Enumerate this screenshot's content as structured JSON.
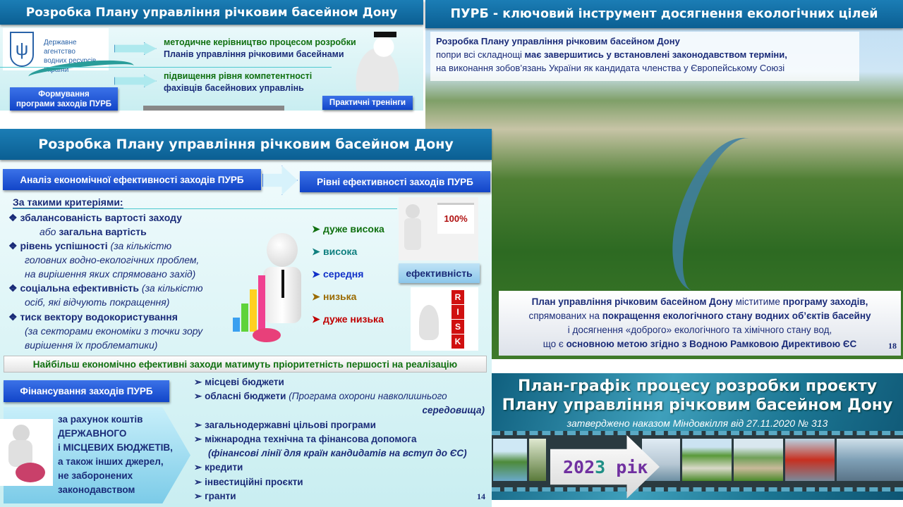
{
  "slide1": {
    "title": "Розробка Плану управління річковим басейном Дону",
    "agency": [
      "Державне агентство",
      "водних ресурсів України"
    ],
    "item1": [
      "методичне керівництво процесом розробки",
      "Планів управління річковими басейнами"
    ],
    "item2": [
      "підвищення рівня компетентності",
      "фахівців басейнових управлінь"
    ],
    "btn_program": [
      "Формування",
      "програми заходів ПУРБ"
    ],
    "btn_training": "Практичні тренінги"
  },
  "slide2": {
    "title": "Розробка Плану управління річковим басейном Дону",
    "analysis_box": "Аналіз економічної ефективності заходів ПУРБ",
    "levels_box": "Рівні ефективності заходів ПУРБ",
    "criteria_heading": "За такими критеріями:",
    "criteria": [
      {
        "bold": "збалансованість вартості заходу",
        "line2_it": "або",
        "line2_b": " загальна вартість"
      },
      {
        "bold": "рівень успішності ",
        "it": "(за кількістю",
        "more": [
          "головних водно-екологічних проблем,",
          "на вирішення яких спрямовано захід)"
        ]
      },
      {
        "bold": "соціальна ефективність ",
        "it": "(за кількістю",
        "more": [
          "осіб, які відчують покращення)"
        ]
      },
      {
        "bold": "тиск вектору водокористування",
        "more": [
          "(за секторами економіки з точки зору",
          "вирішення їх проблематики)"
        ]
      }
    ],
    "levels": [
      {
        "label": "дуже висока",
        "color": "#107010"
      },
      {
        "label": "висока",
        "color": "#0f7f7f"
      },
      {
        "label": "середня",
        "color": "#1030c8"
      },
      {
        "label": "низька",
        "color": "#9a6a00"
      },
      {
        "label": "дуже низька",
        "color": "#c00000"
      }
    ],
    "chart_label": "100%",
    "risk_letters": [
      "R",
      "I",
      "S",
      "K"
    ],
    "effectiveness_btn": "ефективність",
    "priority_bar": "Найбільш економічно ефективні заходи матимуть пріоритетність першості на реалізацію",
    "financing_box": "Фінансування заходів ПУРБ",
    "financing_text": [
      "за рахунок коштів",
      "ДЕРЖАВНОГО",
      "і МІСЦЕВИХ БЮДЖЕТІВ,",
      "а також інших джерел,",
      "не заборонених",
      "законодавством"
    ],
    "sources": [
      {
        "b": "місцеві бюджети"
      },
      {
        "b": "обласні бюджети ",
        "it": "(Програма охорони навколишнього",
        "it2": "середовища)"
      },
      {
        "b": "загальнодержавні цільові програми"
      },
      {
        "b": "міжнародна технічна та фінансова допомога",
        "it2": "(фінансові лінії для країн кандидатів на вступ до ЄС)"
      },
      {
        "b": "кредити"
      },
      {
        "b": "інвестиційні проєкти"
      },
      {
        "b": "гранти"
      }
    ],
    "page": "14"
  },
  "slide3": {
    "title": "ПУРБ - ключовий інструмент досягнення екологічних цілей",
    "top_lines": [
      "Розробка Плану управління річковим басейном Дону",
      "попри всі складнощі ",
      "має завершитись у встановлені законодавством терміни,",
      "на виконання зобов’язань України як кандидата членства у Європейському Союзі"
    ],
    "bottom": {
      "l1b": "План управління річковим басейном Дону",
      "l1n": " міститиме ",
      "l1b2": "програму заходів,",
      "l2n": "спрямованих на ",
      "l2b": "покращення екологічного стану водних об’єктів басейну",
      "l3": "і досягнення «доброго» екологічного та хімічного стану вод,",
      "l4n": "що є ",
      "l4b": "основною метою згідно з Водною Рамковою Директивою ЄС"
    },
    "page": "18"
  },
  "slide4": {
    "title": [
      "План-графік процесу розробки проєкту",
      "Плану управління річковим басейном Дону"
    ],
    "subtitle": "затверджено наказом Міндовкілля від 27.11.2020 № 313",
    "year_a": "202",
    "year_b": "3",
    "year_c": " рік"
  }
}
